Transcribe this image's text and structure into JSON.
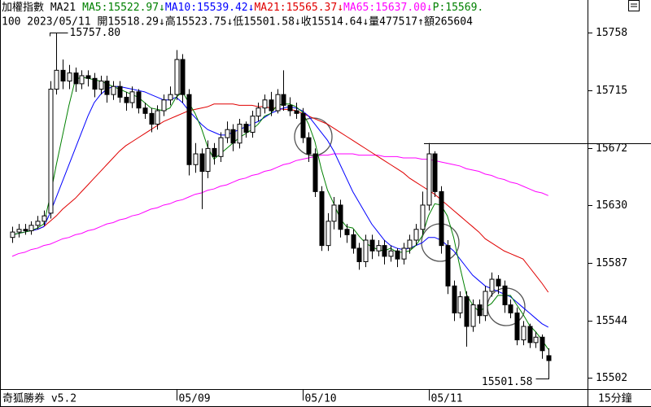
{
  "chart_data": {
    "type": "candlestick",
    "title": "加權指數 MA21",
    "price_tag": "P:15569.",
    "price_tag_color": "#008000",
    "info": "100 2023/05/11 開15518.29↓高15523.75↓低15501.58↓收15514.64↓量477517↑額265604",
    "software": "奇狐勝券 v5.2",
    "period": "15分鐘",
    "categories": [
      null,
      null,
      null,
      null,
      null,
      null,
      null,
      null,
      null,
      null,
      null,
      null,
      null,
      null,
      null,
      null,
      null,
      null,
      null,
      null,
      null,
      null,
      null,
      null,
      null,
      null,
      "05/09",
      null,
      null,
      null,
      null,
      null,
      null,
      null,
      null,
      null,
      null,
      null,
      null,
      null,
      null,
      null,
      null,
      null,
      null,
      null,
      "05/10",
      null,
      null,
      null,
      null,
      null,
      null,
      null,
      null,
      null,
      null,
      null,
      null,
      null,
      null,
      null,
      null,
      null,
      null,
      null,
      "05/11",
      null,
      null,
      null,
      null,
      null,
      null,
      null,
      null,
      null,
      null,
      null,
      null,
      null,
      null,
      null,
      null,
      null,
      null,
      null
    ],
    "open": [
      15606,
      15610,
      15612,
      15611,
      15615,
      15618,
      15624,
      15716,
      15730,
      15722,
      15728,
      15720,
      15726,
      15724,
      15716,
      15722,
      15712,
      15718,
      15710,
      15706,
      15714,
      15702,
      15698,
      15690,
      15700,
      15708,
      15712,
      15738,
      15712,
      15660,
      15668,
      15655,
      15672,
      15666,
      15680,
      15686,
      15676,
      15690,
      15684,
      15696,
      15702,
      15708,
      15700,
      15712,
      15704,
      15700,
      15698,
      15680,
      15668,
      15640,
      15600,
      15618,
      15630,
      15612,
      15608,
      15598,
      15588,
      15604,
      15596,
      15600,
      15592,
      15596,
      15590,
      15598,
      15604,
      15612,
      15630,
      15668,
      15640,
      15600,
      15570,
      15550,
      15562,
      15540,
      15556,
      15548,
      15566,
      15575,
      15570,
      15556,
      15550,
      15530,
      15540,
      15528,
      15532,
      15518.29
    ],
    "high": [
      15614,
      15616,
      15616,
      15618,
      15622,
      15626,
      15722,
      15757.8,
      15738,
      15734,
      15732,
      15730,
      15730,
      15728,
      15726,
      15726,
      15722,
      15722,
      15714,
      15718,
      15716,
      15706,
      15702,
      15704,
      15712,
      15718,
      15745,
      15742,
      15716,
      15676,
      15672,
      15678,
      15676,
      15684,
      15692,
      15690,
      15694,
      15692,
      15700,
      15706,
      15712,
      15714,
      15716,
      15730,
      15710,
      15706,
      15702,
      15684,
      15672,
      15644,
      15624,
      15636,
      15634,
      15616,
      15612,
      15602,
      15608,
      15608,
      15604,
      15604,
      15600,
      15598,
      15602,
      15608,
      15616,
      15640,
      15676,
      15670,
      15644,
      15604,
      15574,
      15566,
      15566,
      15560,
      15560,
      15570,
      15580,
      15578,
      15574,
      15560,
      15554,
      15544,
      15542,
      15536,
      15534,
      15523.75
    ],
    "low": [
      15602,
      15606,
      15608,
      15608,
      15612,
      15615,
      15620,
      15712,
      15716,
      15716,
      15714,
      15716,
      15718,
      15710,
      15712,
      15706,
      15708,
      15706,
      15700,
      15702,
      15698,
      15694,
      15684,
      15686,
      15696,
      15704,
      15708,
      15706,
      15652,
      15654,
      15627,
      15650,
      15660,
      15662,
      15676,
      15670,
      15672,
      15680,
      15680,
      15692,
      15698,
      15696,
      15698,
      15700,
      15696,
      15694,
      15676,
      15662,
      15636,
      15596,
      15596,
      15612,
      15606,
      15602,
      15594,
      15582,
      15584,
      15590,
      15592,
      15586,
      15588,
      15584,
      15586,
      15594,
      15600,
      15608,
      15626,
      15636,
      15594,
      15564,
      15544,
      15546,
      15525,
      15536,
      15542,
      15544,
      15562,
      15564,
      15550,
      15546,
      15526,
      15526,
      15524,
      15524,
      15516,
      15501.58
    ],
    "close": [
      15610,
      15612,
      15611,
      15615,
      15618,
      15622,
      15716,
      15730,
      15722,
      15728,
      15720,
      15726,
      15724,
      15716,
      15722,
      15712,
      15718,
      15710,
      15706,
      15714,
      15702,
      15698,
      15690,
      15700,
      15708,
      15712,
      15738,
      15712,
      15660,
      15668,
      15655,
      15672,
      15666,
      15680,
      15686,
      15676,
      15690,
      15684,
      15696,
      15702,
      15708,
      15700,
      15712,
      15704,
      15700,
      15698,
      15680,
      15668,
      15640,
      15600,
      15618,
      15630,
      15612,
      15608,
      15598,
      15588,
      15604,
      15596,
      15600,
      15592,
      15596,
      15590,
      15598,
      15604,
      15612,
      15630,
      15668,
      15640,
      15600,
      15570,
      15550,
      15562,
      15540,
      15556,
      15548,
      15566,
      15575,
      15570,
      15556,
      15550,
      15530,
      15540,
      15528,
      15532,
      15522,
      15514.64
    ],
    "series": [
      {
        "name": "MA5:15522.97↓",
        "color": "#008000",
        "values": [
          15608,
          15609,
          15610,
          15611,
          15613,
          15616,
          15636,
          15660,
          15682,
          15704,
          15723,
          15725,
          15724,
          15723,
          15722,
          15720,
          15718,
          15716,
          15714,
          15712,
          15710,
          15706,
          15702,
          15701,
          15700,
          15702,
          15710,
          15714,
          15706,
          15698,
          15687,
          15673,
          15664,
          15668,
          15672,
          15676,
          15680,
          15683,
          15686,
          15690,
          15696,
          15698,
          15704,
          15705,
          15705,
          15703,
          15699,
          15690,
          15677,
          15657,
          15641,
          15631,
          15620,
          15614,
          15613,
          15607,
          15602,
          15599,
          15597,
          15596,
          15598,
          15595,
          15595,
          15596,
          15600,
          15607,
          15622,
          15631,
          15630,
          15622,
          15606,
          15584,
          15564,
          15556,
          15551,
          15554,
          15557,
          15563,
          15563,
          15563,
          15556,
          15549,
          15541,
          15536,
          15530,
          15522.97
        ]
      },
      {
        "name": "MA10:15539.42↓",
        "color": "#0000ff",
        "values": [
          15608,
          15609,
          15610,
          15611,
          15612,
          15614,
          15624,
          15636,
          15648,
          15660,
          15672,
          15684,
          15696,
          15706,
          15712,
          15716,
          15718,
          15718,
          15717,
          15716,
          15715,
          15714,
          15712,
          15710,
          15708,
          15708,
          15710,
          15706,
          15700,
          15695,
          15690,
          15686,
          15684,
          15682,
          15682,
          15684,
          15686,
          15688,
          15690,
          15692,
          15695,
          15698,
          15700,
          15702,
          15703,
          15702,
          15700,
          15696,
          15690,
          15684,
          15678,
          15670,
          15660,
          15650,
          15640,
          15632,
          15624,
          15616,
          15610,
          15604,
          15600,
          15598,
          15597,
          15598,
          15600,
          15602,
          15606,
          15606,
          15604,
          15600,
          15596,
          15590,
          15584,
          15578,
          15574,
          15570,
          15568,
          15566,
          15564,
          15562,
          15558,
          15554,
          15550,
          15546,
          15542,
          15539.42
        ]
      },
      {
        "name": "MA21:15565.37↓",
        "color": "#e00000",
        "values": [
          15608,
          15609,
          15610,
          15611,
          15612,
          15614,
          15618,
          15622,
          15627,
          15631,
          15635,
          15640,
          15645,
          15650,
          15655,
          15660,
          15665,
          15670,
          15674,
          15677,
          15680,
          15683,
          15686,
          15689,
          15692,
          15694,
          15696,
          15698,
          15700,
          15701,
          15702,
          15703,
          15705,
          15705,
          15705,
          15705,
          15704,
          15704,
          15704,
          15703,
          15703,
          15702,
          15702,
          15701,
          15701,
          15700,
          15698,
          15696,
          15694,
          15692,
          15690,
          15687,
          15684,
          15681,
          15678,
          15675,
          15672,
          15669,
          15666,
          15663,
          15660,
          15657,
          15654,
          15650,
          15647,
          15644,
          15641,
          15638,
          15634,
          15630,
          15626,
          15622,
          15618,
          15614,
          15610,
          15605,
          15602,
          15599,
          15596,
          15594,
          15592,
          15590,
          15584,
          15578,
          15572,
          15565.37
        ]
      },
      {
        "name": "MA65:15637.00↓",
        "color": "#ff00ff",
        "values": [
          15592,
          15594,
          15595,
          15597,
          15598,
          15600,
          15601,
          15603,
          15605,
          15606,
          15608,
          15609,
          15611,
          15612,
          15614,
          15616,
          15617,
          15619,
          15620,
          15622,
          15623,
          15625,
          15627,
          15628,
          15630,
          15631,
          15633,
          15634,
          15636,
          15638,
          15639,
          15641,
          15642,
          15644,
          15645,
          15647,
          15649,
          15650,
          15652,
          15653,
          15655,
          15656,
          15658,
          15660,
          15661,
          15663,
          15664,
          15665,
          15666,
          15667,
          15667,
          15668,
          15668,
          15668,
          15668,
          15667,
          15667,
          15667,
          15667,
          15666,
          15666,
          15666,
          15665,
          15665,
          15665,
          15664,
          15664,
          15663,
          15662,
          15661,
          15660,
          15659,
          15657,
          15656,
          15655,
          15653,
          15652,
          15650,
          15649,
          15647,
          15646,
          15644,
          15642,
          15640,
          15639,
          15637
        ]
      }
    ],
    "ylim": [
      15493.5,
      15761
    ],
    "yticks": [
      15502,
      15544,
      15587,
      15630,
      15672,
      15715,
      15758
    ],
    "max_label": {
      "value": 15757.8,
      "label": "15757.80"
    },
    "min_label": {
      "value": 15501.58,
      "label": "15501.58"
    },
    "up_color": "#ffffff",
    "down_color": "#000000"
  }
}
